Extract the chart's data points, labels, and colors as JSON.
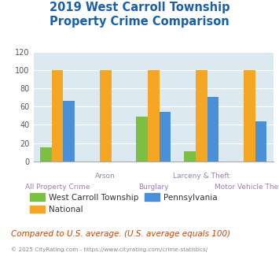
{
  "title": "2019 West Carroll Township\nProperty Crime Comparison",
  "categories": [
    "All Property Crime",
    "Arson",
    "Burglary",
    "Larceny & Theft",
    "Motor Vehicle Theft"
  ],
  "west_carroll": [
    15,
    0,
    49,
    11,
    0
  ],
  "national": [
    100,
    100,
    100,
    100,
    100
  ],
  "pennsylvania": [
    66,
    0,
    54,
    71,
    44
  ],
  "colors": {
    "west_carroll": "#7bc043",
    "national": "#f5a623",
    "pennsylvania": "#4a90d9"
  },
  "ylim": [
    0,
    120
  ],
  "yticks": [
    0,
    20,
    40,
    60,
    80,
    100,
    120
  ],
  "background_color": "#dce9f0",
  "title_color": "#1a5faa",
  "xlabel_color": "#9e7db5",
  "legend_label_color": "#333333",
  "footer_text": "Compared to U.S. average. (U.S. average equals 100)",
  "copyright_text": "© 2025 CityRating.com - https://www.cityrating.com/crime-statistics/",
  "footer_color": "#cc4400",
  "copyright_color": "#888888"
}
